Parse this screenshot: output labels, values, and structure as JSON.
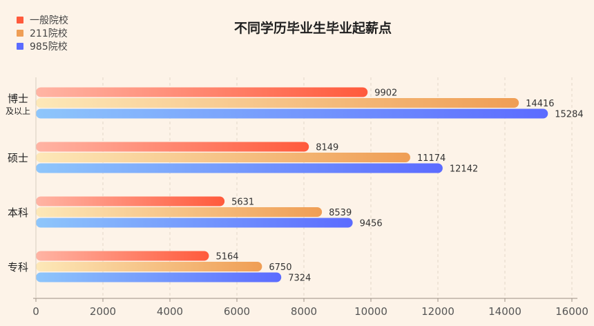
{
  "chart_data": {
    "type": "bar",
    "orientation": "horizontal",
    "title": "不同学历毕业生毕业起薪点",
    "categories": [
      {
        "label": "博士",
        "sublabel": "及以上"
      },
      {
        "label": "硕士",
        "sublabel": ""
      },
      {
        "label": "本科",
        "sublabel": ""
      },
      {
        "label": "专科",
        "sublabel": ""
      }
    ],
    "series": [
      {
        "name": "一般院校",
        "values": [
          9902,
          8149,
          5631,
          5164
        ],
        "color": "#ff5a3c",
        "gradient_start": "#ffb4a4"
      },
      {
        "name": "211院校",
        "values": [
          14416,
          11174,
          8539,
          6750
        ],
        "color": "#ef9e55",
        "gradient_start": "#fde8b8"
      },
      {
        "name": "985院校",
        "values": [
          15284,
          12142,
          9456,
          7324
        ],
        "color": "#5b6bff",
        "gradient_start": "#8ec6fb"
      }
    ],
    "xlim": [
      0,
      16000
    ],
    "xticks": [
      0,
      2000,
      4000,
      6000,
      8000,
      10000,
      12000,
      14000,
      16000
    ],
    "xlabel": "",
    "ylabel": "",
    "legend_position": "top-left",
    "grid": true
  }
}
